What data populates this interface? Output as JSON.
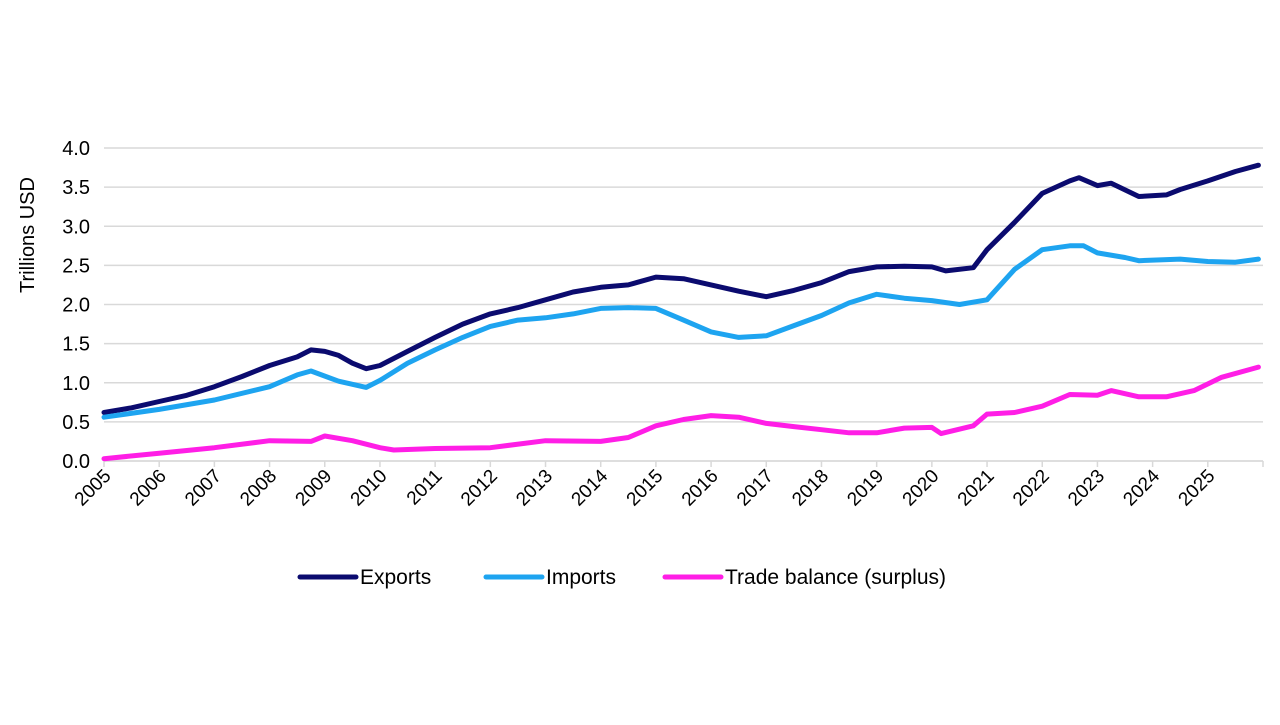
{
  "chart_data": {
    "type": "line",
    "title": "",
    "xlabel": "",
    "ylabel": "Trillions USD",
    "ylim": [
      0,
      4.0
    ],
    "yticks": [
      "0.0",
      "0.5",
      "1.0",
      "1.5",
      "2.0",
      "2.5",
      "3.0",
      "3.5",
      "4.0"
    ],
    "xlim": [
      "2005-01",
      "2026-01"
    ],
    "xticks": [
      "2005",
      "2006",
      "2007",
      "2008",
      "2009",
      "2010",
      "2011",
      "2012",
      "2013",
      "2014",
      "2015",
      "2016",
      "2017",
      "2018",
      "2019",
      "2020",
      "2021",
      "2022",
      "2023",
      "2024",
      "2025"
    ],
    "grid": "horizontal",
    "legend_position": "bottom",
    "series": [
      {
        "name": "Exports",
        "color": "#0b0b6f",
        "points": [
          [
            "2005-01",
            0.62
          ],
          [
            "2005-07",
            0.68
          ],
          [
            "2006-01",
            0.76
          ],
          [
            "2006-07",
            0.84
          ],
          [
            "2007-01",
            0.95
          ],
          [
            "2007-07",
            1.08
          ],
          [
            "2008-01",
            1.22
          ],
          [
            "2008-07",
            1.33
          ],
          [
            "2008-10",
            1.42
          ],
          [
            "2009-01",
            1.4
          ],
          [
            "2009-04",
            1.35
          ],
          [
            "2009-07",
            1.25
          ],
          [
            "2009-10",
            1.18
          ],
          [
            "2010-01",
            1.22
          ],
          [
            "2010-07",
            1.4
          ],
          [
            "2011-01",
            1.58
          ],
          [
            "2011-07",
            1.75
          ],
          [
            "2012-01",
            1.88
          ],
          [
            "2012-07",
            1.96
          ],
          [
            "2013-01",
            2.06
          ],
          [
            "2013-07",
            2.16
          ],
          [
            "2014-01",
            2.22
          ],
          [
            "2014-07",
            2.25
          ],
          [
            "2015-01",
            2.35
          ],
          [
            "2015-07",
            2.33
          ],
          [
            "2016-01",
            2.25
          ],
          [
            "2016-07",
            2.17
          ],
          [
            "2017-01",
            2.1
          ],
          [
            "2017-07",
            2.18
          ],
          [
            "2018-01",
            2.28
          ],
          [
            "2018-07",
            2.42
          ],
          [
            "2019-01",
            2.48
          ],
          [
            "2019-07",
            2.49
          ],
          [
            "2020-01",
            2.48
          ],
          [
            "2020-04",
            2.43
          ],
          [
            "2020-10",
            2.47
          ],
          [
            "2021-01",
            2.7
          ],
          [
            "2021-07",
            3.05
          ],
          [
            "2022-01",
            3.42
          ],
          [
            "2022-07",
            3.58
          ],
          [
            "2022-09",
            3.62
          ],
          [
            "2023-01",
            3.52
          ],
          [
            "2023-04",
            3.55
          ],
          [
            "2023-10",
            3.38
          ],
          [
            "2024-04",
            3.4
          ],
          [
            "2024-07",
            3.47
          ],
          [
            "2025-01",
            3.58
          ],
          [
            "2025-07",
            3.7
          ],
          [
            "2025-12",
            3.78
          ]
        ]
      },
      {
        "name": "Imports",
        "color": "#1ea4f0",
        "points": [
          [
            "2005-01",
            0.56
          ],
          [
            "2006-01",
            0.66
          ],
          [
            "2007-01",
            0.78
          ],
          [
            "2008-01",
            0.95
          ],
          [
            "2008-07",
            1.1
          ],
          [
            "2008-10",
            1.15
          ],
          [
            "2009-04",
            1.02
          ],
          [
            "2009-10",
            0.94
          ],
          [
            "2010-01",
            1.03
          ],
          [
            "2010-07",
            1.25
          ],
          [
            "2011-01",
            1.42
          ],
          [
            "2011-07",
            1.58
          ],
          [
            "2012-01",
            1.72
          ],
          [
            "2012-07",
            1.8
          ],
          [
            "2013-01",
            1.83
          ],
          [
            "2013-07",
            1.88
          ],
          [
            "2014-01",
            1.95
          ],
          [
            "2014-07",
            1.96
          ],
          [
            "2015-01",
            1.95
          ],
          [
            "2015-07",
            1.8
          ],
          [
            "2016-01",
            1.65
          ],
          [
            "2016-07",
            1.58
          ],
          [
            "2017-01",
            1.6
          ],
          [
            "2017-07",
            1.73
          ],
          [
            "2018-01",
            1.86
          ],
          [
            "2018-07",
            2.02
          ],
          [
            "2019-01",
            2.13
          ],
          [
            "2019-07",
            2.08
          ],
          [
            "2020-01",
            2.05
          ],
          [
            "2020-07",
            2.0
          ],
          [
            "2021-01",
            2.06
          ],
          [
            "2021-07",
            2.45
          ],
          [
            "2022-01",
            2.7
          ],
          [
            "2022-07",
            2.75
          ],
          [
            "2022-10",
            2.75
          ],
          [
            "2023-01",
            2.66
          ],
          [
            "2023-07",
            2.6
          ],
          [
            "2023-10",
            2.56
          ],
          [
            "2024-07",
            2.58
          ],
          [
            "2025-01",
            2.55
          ],
          [
            "2025-07",
            2.54
          ],
          [
            "2025-12",
            2.58
          ]
        ]
      },
      {
        "name": "Trade balance (surplus)",
        "color": "#ff1ee6",
        "points": [
          [
            "2005-01",
            0.03
          ],
          [
            "2006-01",
            0.1
          ],
          [
            "2007-01",
            0.17
          ],
          [
            "2008-01",
            0.26
          ],
          [
            "2008-10",
            0.25
          ],
          [
            "2009-01",
            0.32
          ],
          [
            "2009-07",
            0.26
          ],
          [
            "2010-01",
            0.17
          ],
          [
            "2010-04",
            0.14
          ],
          [
            "2011-01",
            0.16
          ],
          [
            "2012-01",
            0.17
          ],
          [
            "2013-01",
            0.26
          ],
          [
            "2014-01",
            0.25
          ],
          [
            "2014-07",
            0.3
          ],
          [
            "2015-01",
            0.45
          ],
          [
            "2015-07",
            0.53
          ],
          [
            "2016-01",
            0.58
          ],
          [
            "2016-07",
            0.56
          ],
          [
            "2017-01",
            0.48
          ],
          [
            "2017-07",
            0.44
          ],
          [
            "2018-01",
            0.4
          ],
          [
            "2018-07",
            0.36
          ],
          [
            "2019-01",
            0.36
          ],
          [
            "2019-07",
            0.42
          ],
          [
            "2020-01",
            0.43
          ],
          [
            "2020-03",
            0.35
          ],
          [
            "2020-10",
            0.45
          ],
          [
            "2021-01",
            0.6
          ],
          [
            "2021-07",
            0.62
          ],
          [
            "2022-01",
            0.7
          ],
          [
            "2022-07",
            0.85
          ],
          [
            "2023-01",
            0.84
          ],
          [
            "2023-04",
            0.9
          ],
          [
            "2023-10",
            0.82
          ],
          [
            "2024-04",
            0.82
          ],
          [
            "2024-10",
            0.9
          ],
          [
            "2025-04",
            1.07
          ],
          [
            "2025-12",
            1.2
          ]
        ]
      }
    ]
  }
}
